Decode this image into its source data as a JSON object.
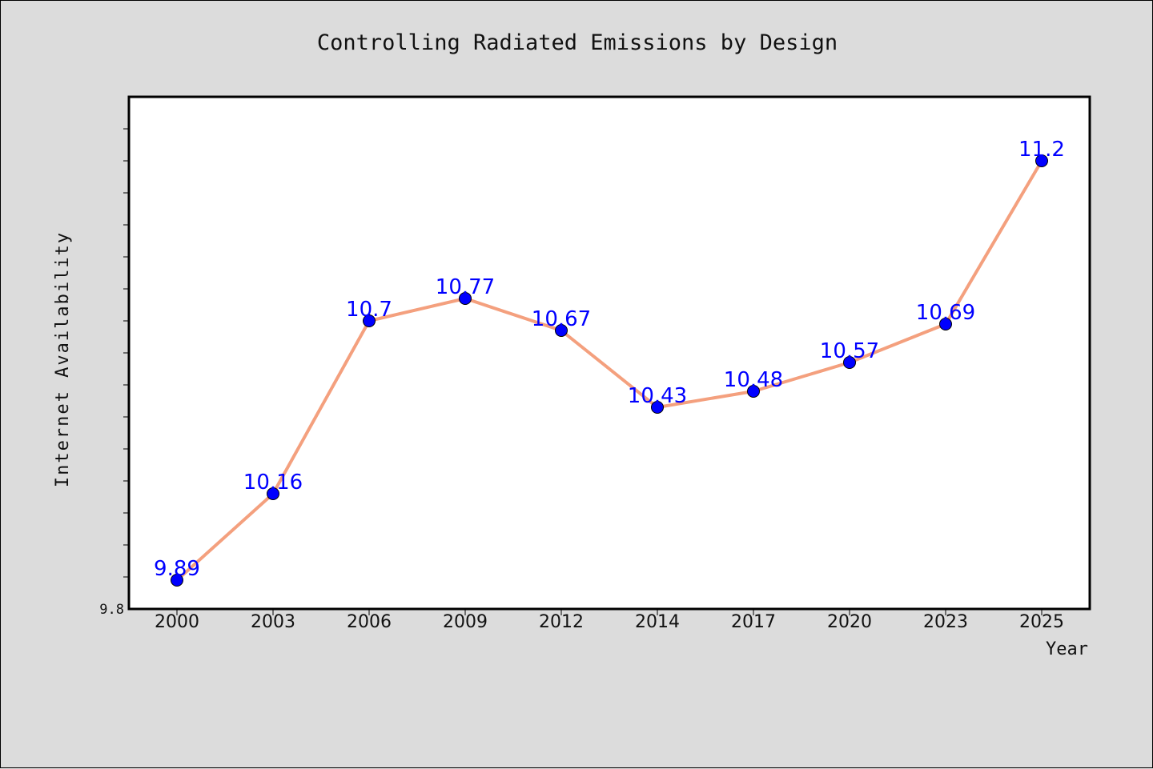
{
  "chart_data": {
    "type": "line",
    "title": "Controlling Radiated Emissions by Design",
    "xlabel": "Year",
    "ylabel": "Internet Availability",
    "categories": [
      "2000",
      "2003",
      "2006",
      "2009",
      "2012",
      "2014",
      "2017",
      "2020",
      "2023",
      "2025"
    ],
    "series": [
      {
        "values": [
          9.89,
          10.16,
          10.7,
          10.77,
          10.67,
          10.43,
          10.48,
          10.57,
          10.69,
          11.2
        ],
        "labels": [
          "9.89",
          "10.16",
          "10.7",
          "10.77",
          "10.67",
          "10.43",
          "10.48",
          "10.57",
          "10.69",
          "11.2"
        ]
      }
    ],
    "ylim": [
      9.8,
      11.4
    ],
    "yticks": [
      9.8
    ],
    "ytick_labels": [
      "9.8"
    ],
    "grid": false,
    "colors": {
      "line": "#f4a07e",
      "marker": "#0000ff",
      "data_label": "#0000ff",
      "plot_background": "#ffffff",
      "figure_background": "#dcdcdc"
    }
  }
}
